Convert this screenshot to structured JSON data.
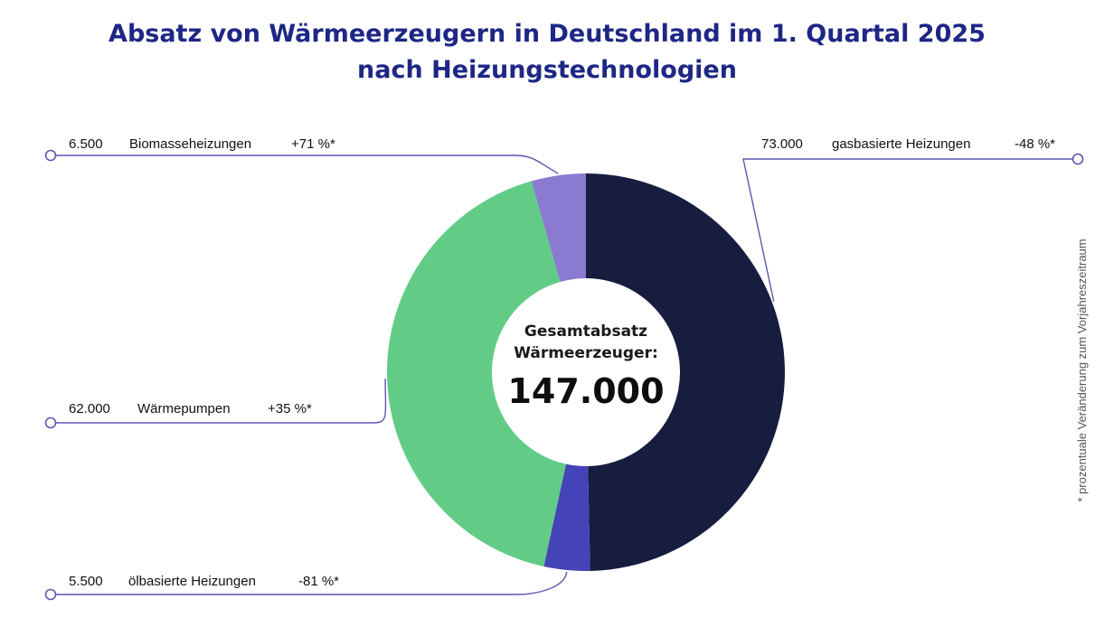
{
  "title": {
    "line1": "Absatz von Wärmeerzeugern in Deutschland im 1. Quartal 2025",
    "line2": "nach Heizungstechnologien"
  },
  "chart_data": {
    "type": "pie",
    "total": 147000,
    "center_caption_line1": "Gesamtabsatz",
    "center_caption_line2": "Wärmeerzeuger:",
    "center_value": "147.000",
    "footnote": "* prozentuale Veränderung zum Vorjahreszeitraum",
    "colors": {
      "accent": "#1e2785",
      "connector": "#5a58b0"
    },
    "slices": [
      {
        "name": "gasbasierte Heizungen",
        "value": 73000,
        "value_label": "73.000",
        "change": "-48 %*",
        "color": "#171d3f"
      },
      {
        "name": "ölbasierte Heizungen",
        "value": 5500,
        "value_label": "5.500",
        "change": "-81 %*",
        "color": "#4543b8"
      },
      {
        "name": "Wärmepumpen",
        "value": 62000,
        "value_label": "62.000",
        "change": "+35 %*",
        "color": "#62cc86"
      },
      {
        "name": "Biomasseheizungen",
        "value": 6500,
        "value_label": "6.500",
        "change": "+71 %*",
        "color": "#8a7ad2"
      }
    ]
  }
}
